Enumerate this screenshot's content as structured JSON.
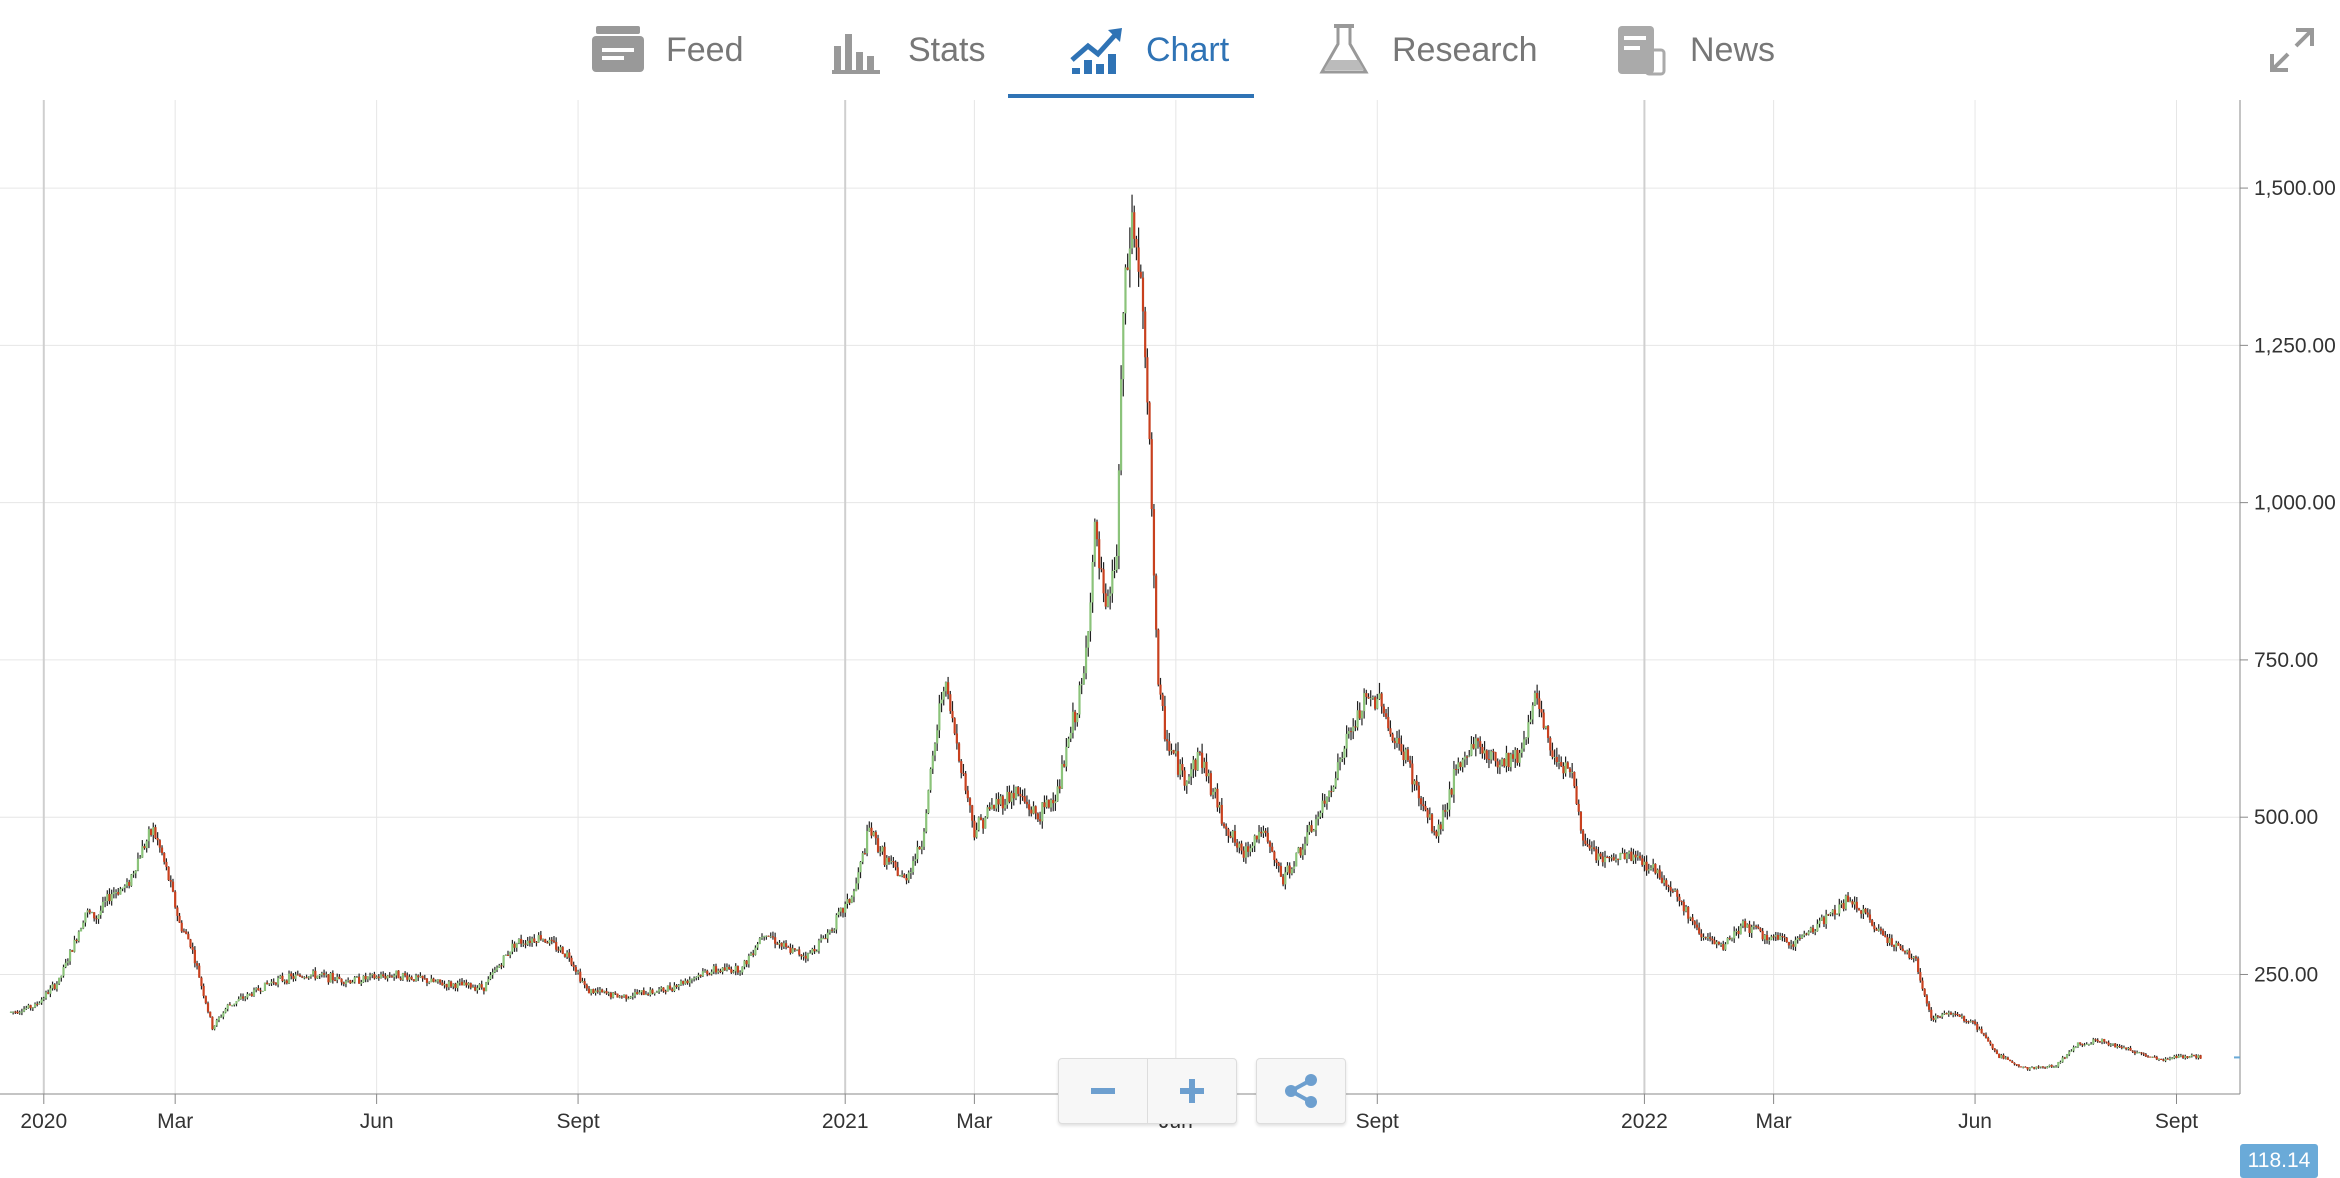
{
  "tabs": [
    {
      "label": "Feed",
      "icon": "feed-icon"
    },
    {
      "label": "Stats",
      "icon": "stats-icon"
    },
    {
      "label": "Chart",
      "icon": "chart-icon",
      "active": true
    },
    {
      "label": "Research",
      "icon": "flask-icon"
    },
    {
      "label": "News",
      "icon": "news-icon"
    }
  ],
  "colors": {
    "accent": "#2f73b5",
    "up": "#8bc37a",
    "down": "#c8401e",
    "wick": "#222222",
    "grid": "#e6e6e6",
    "price_tag": "#6aaad8"
  },
  "controls": {
    "zoom_out_icon": "minus-icon",
    "zoom_in_icon": "plus-icon",
    "share_icon": "share-icon",
    "fullscreen_icon": "expand-icon"
  },
  "chart_data": {
    "type": "candlestick",
    "y_ticks": [
      250,
      500,
      750,
      1000,
      1250,
      1500
    ],
    "y_tick_labels": [
      "250.00",
      "500.00",
      "750.00",
      "1,000.00",
      "1,250.00",
      "1,500.00"
    ],
    "ylim": [
      60,
      1640
    ],
    "x_range": [
      "2019-12-12",
      "2022-09-30"
    ],
    "x_ticks": [
      {
        "date": "2020-01-01",
        "label": "2020",
        "major": true
      },
      {
        "date": "2020-03-01",
        "label": "Mar"
      },
      {
        "date": "2020-06-01",
        "label": "Jun"
      },
      {
        "date": "2020-09-01",
        "label": "Sept"
      },
      {
        "date": "2021-01-01",
        "label": "2021",
        "major": true
      },
      {
        "date": "2021-03-01",
        "label": "Mar"
      },
      {
        "date": "2021-06-01",
        "label": "Jun"
      },
      {
        "date": "2021-09-01",
        "label": "Sept"
      },
      {
        "date": "2022-01-01",
        "label": "2022",
        "major": true
      },
      {
        "date": "2022-03-01",
        "label": "Mar"
      },
      {
        "date": "2022-06-01",
        "label": "Jun"
      },
      {
        "date": "2022-09-01",
        "label": "Sept"
      }
    ],
    "last_price": "118.14",
    "grid": true,
    "price_path": [
      [
        "2019-12-17",
        190
      ],
      [
        "2019-12-28",
        200
      ],
      [
        "2020-01-08",
        240
      ],
      [
        "2020-01-15",
        300
      ],
      [
        "2020-01-20",
        350
      ],
      [
        "2020-01-25",
        340
      ],
      [
        "2020-02-01",
        380
      ],
      [
        "2020-02-08",
        390
      ],
      [
        "2020-02-15",
        450
      ],
      [
        "2020-02-20",
        480
      ],
      [
        "2020-02-24",
        440
      ],
      [
        "2020-02-28",
        390
      ],
      [
        "2020-03-03",
        330
      ],
      [
        "2020-03-08",
        300
      ],
      [
        "2020-03-14",
        220
      ],
      [
        "2020-03-18",
        165
      ],
      [
        "2020-03-25",
        200
      ],
      [
        "2020-04-05",
        220
      ],
      [
        "2020-04-15",
        240
      ],
      [
        "2020-05-01",
        250
      ],
      [
        "2020-05-20",
        240
      ],
      [
        "2020-06-10",
        250
      ],
      [
        "2020-07-01",
        235
      ],
      [
        "2020-07-20",
        230
      ],
      [
        "2020-08-03",
        300
      ],
      [
        "2020-08-15",
        310
      ],
      [
        "2020-08-28",
        280
      ],
      [
        "2020-09-05",
        225
      ],
      [
        "2020-09-20",
        215
      ],
      [
        "2020-10-10",
        225
      ],
      [
        "2020-10-30",
        255
      ],
      [
        "2020-11-15",
        260
      ],
      [
        "2020-11-25",
        320
      ],
      [
        "2020-12-05",
        290
      ],
      [
        "2020-12-15",
        280
      ],
      [
        "2020-12-25",
        320
      ],
      [
        "2021-01-05",
        380
      ],
      [
        "2021-01-12",
        480
      ],
      [
        "2021-01-20",
        430
      ],
      [
        "2021-01-28",
        400
      ],
      [
        "2021-02-05",
        460
      ],
      [
        "2021-02-15",
        720
      ],
      [
        "2021-02-22",
        600
      ],
      [
        "2021-03-01",
        480
      ],
      [
        "2021-03-10",
        520
      ],
      [
        "2021-03-20",
        540
      ],
      [
        "2021-03-30",
        500
      ],
      [
        "2021-04-08",
        540
      ],
      [
        "2021-04-15",
        650
      ],
      [
        "2021-04-20",
        720
      ],
      [
        "2021-04-25",
        950
      ],
      [
        "2021-04-30",
        820
      ],
      [
        "2021-05-05",
        920
      ],
      [
        "2021-05-08",
        1300
      ],
      [
        "2021-05-12",
        1450
      ],
      [
        "2021-05-16",
        1350
      ],
      [
        "2021-05-19",
        1150
      ],
      [
        "2021-05-21",
        1000
      ],
      [
        "2021-05-24",
        700
      ],
      [
        "2021-05-28",
        620
      ],
      [
        "2021-06-05",
        560
      ],
      [
        "2021-06-12",
        600
      ],
      [
        "2021-06-22",
        500
      ],
      [
        "2021-07-01",
        440
      ],
      [
        "2021-07-10",
        480
      ],
      [
        "2021-07-20",
        400
      ],
      [
        "2021-07-30",
        460
      ],
      [
        "2021-08-08",
        520
      ],
      [
        "2021-08-18",
        620
      ],
      [
        "2021-08-26",
        680
      ],
      [
        "2021-09-03",
        690
      ],
      [
        "2021-09-08",
        620
      ],
      [
        "2021-09-14",
        600
      ],
      [
        "2021-09-20",
        530
      ],
      [
        "2021-09-28",
        470
      ],
      [
        "2021-10-06",
        560
      ],
      [
        "2021-10-15",
        620
      ],
      [
        "2021-10-25",
        590
      ],
      [
        "2021-11-05",
        600
      ],
      [
        "2021-11-12",
        690
      ],
      [
        "2021-11-20",
        600
      ],
      [
        "2021-11-28",
        580
      ],
      [
        "2021-12-05",
        450
      ],
      [
        "2021-12-15",
        430
      ],
      [
        "2021-12-25",
        440
      ],
      [
        "2022-01-05",
        420
      ],
      [
        "2022-01-15",
        380
      ],
      [
        "2022-01-25",
        320
      ],
      [
        "2022-02-05",
        290
      ],
      [
        "2022-02-15",
        330
      ],
      [
        "2022-02-25",
        310
      ],
      [
        "2022-03-10",
        300
      ],
      [
        "2022-03-25",
        340
      ],
      [
        "2022-04-05",
        370
      ],
      [
        "2022-04-15",
        330
      ],
      [
        "2022-04-25",
        300
      ],
      [
        "2022-05-05",
        270
      ],
      [
        "2022-05-12",
        180
      ],
      [
        "2022-05-22",
        190
      ],
      [
        "2022-06-01",
        170
      ],
      [
        "2022-06-12",
        120
      ],
      [
        "2022-06-25",
        100
      ],
      [
        "2022-07-08",
        105
      ],
      [
        "2022-07-18",
        140
      ],
      [
        "2022-07-28",
        145
      ],
      [
        "2022-08-10",
        130
      ],
      [
        "2022-08-25",
        115
      ],
      [
        "2022-09-05",
        120
      ],
      [
        "2022-09-12",
        118
      ]
    ]
  }
}
